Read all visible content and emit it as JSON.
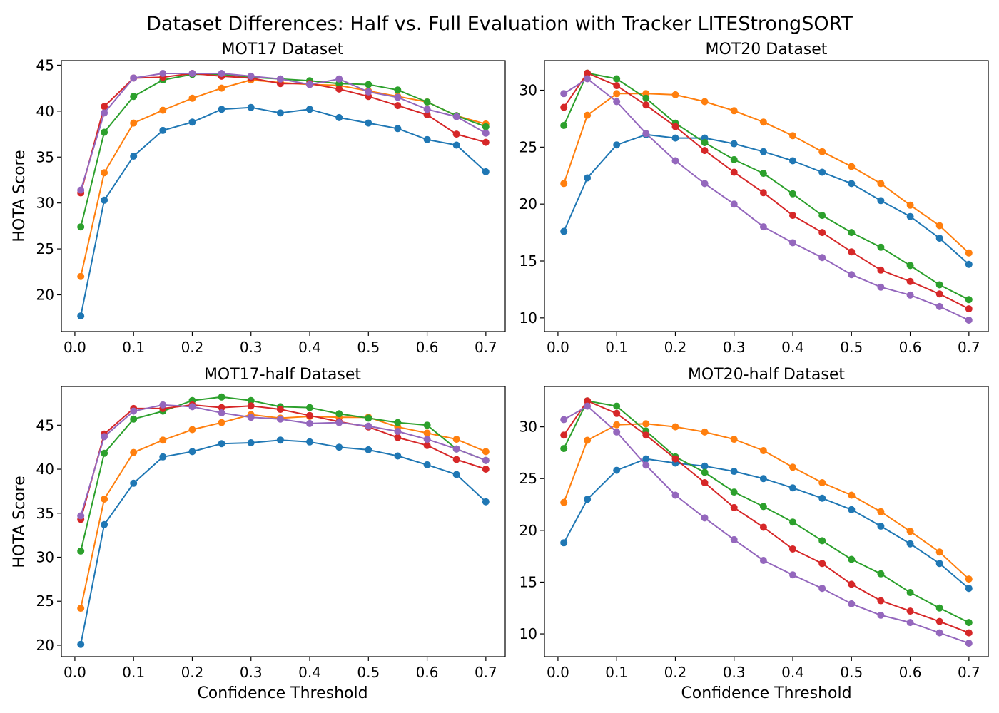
{
  "suptitle": "Dataset Differences: Half vs. Full Evaluation with Tracker LITEStrongSORT",
  "colors": {
    "blue": "#1f77b4",
    "orange": "#ff7f0e",
    "green": "#2ca02c",
    "red": "#d62728",
    "purple": "#9467bd"
  },
  "chart_data": [
    {
      "type": "line",
      "title": "MOT17 Dataset",
      "xlabel": "",
      "ylabel": "HOTA Score",
      "xlim": [
        -0.023,
        0.733
      ],
      "ylim": [
        16.0,
        45.5
      ],
      "xticks": [
        "0.0",
        "0.1",
        "0.2",
        "0.3",
        "0.4",
        "0.5",
        "0.6",
        "0.7"
      ],
      "yticks": [
        "20",
        "25",
        "30",
        "35",
        "40",
        "45"
      ],
      "x": [
        0.01,
        0.05,
        0.1,
        0.15,
        0.2,
        0.25,
        0.3,
        0.35,
        0.4,
        0.45,
        0.5,
        0.55,
        0.6,
        0.65,
        0.7
      ],
      "series": [
        {
          "color": "#1f77b4",
          "values": [
            17.7,
            30.3,
            35.1,
            37.9,
            38.8,
            40.2,
            40.4,
            39.8,
            40.2,
            39.3,
            38.7,
            38.1,
            36.9,
            36.3,
            33.4
          ]
        },
        {
          "color": "#ff7f0e",
          "values": [
            22.0,
            33.3,
            38.7,
            40.1,
            41.4,
            42.5,
            43.4,
            43.1,
            42.9,
            42.8,
            42.2,
            41.6,
            41.0,
            39.5,
            38.6
          ]
        },
        {
          "color": "#2ca02c",
          "values": [
            27.4,
            37.7,
            41.6,
            43.4,
            44.0,
            44.0,
            43.7,
            43.5,
            43.3,
            43.0,
            42.9,
            42.3,
            41.0,
            39.5,
            38.3
          ]
        },
        {
          "color": "#d62728",
          "values": [
            31.1,
            40.5,
            43.6,
            43.7,
            44.1,
            43.8,
            43.6,
            43.0,
            43.0,
            42.4,
            41.6,
            40.6,
            39.6,
            37.5,
            36.6
          ]
        },
        {
          "color": "#9467bd",
          "values": [
            31.4,
            39.8,
            43.6,
            44.1,
            44.1,
            44.1,
            43.8,
            43.5,
            42.9,
            43.5,
            42.1,
            41.5,
            40.2,
            39.4,
            37.6
          ]
        }
      ]
    },
    {
      "type": "line",
      "title": "MOT20 Dataset",
      "xlabel": "",
      "ylabel": "",
      "xlim": [
        -0.023,
        0.733
      ],
      "ylim": [
        8.8,
        32.6
      ],
      "xticks": [
        "0.0",
        "0.1",
        "0.2",
        "0.3",
        "0.4",
        "0.5",
        "0.6",
        "0.7"
      ],
      "yticks": [
        "10",
        "15",
        "20",
        "25",
        "30"
      ],
      "x": [
        0.01,
        0.05,
        0.1,
        0.15,
        0.2,
        0.25,
        0.3,
        0.35,
        0.4,
        0.45,
        0.5,
        0.55,
        0.6,
        0.65,
        0.7
      ],
      "series": [
        {
          "color": "#1f77b4",
          "values": [
            17.6,
            22.3,
            25.2,
            26.1,
            25.8,
            25.8,
            25.3,
            24.6,
            23.8,
            22.8,
            21.8,
            20.3,
            18.9,
            17.0,
            14.7
          ]
        },
        {
          "color": "#ff7f0e",
          "values": [
            21.8,
            27.8,
            29.7,
            29.7,
            29.6,
            29.0,
            28.2,
            27.2,
            26.0,
            24.6,
            23.3,
            21.8,
            19.9,
            18.1,
            15.7
          ]
        },
        {
          "color": "#2ca02c",
          "values": [
            26.9,
            31.5,
            31.0,
            29.3,
            27.1,
            25.4,
            23.9,
            22.7,
            20.9,
            19.0,
            17.5,
            16.2,
            14.6,
            12.9,
            11.6
          ]
        },
        {
          "color": "#d62728",
          "values": [
            28.5,
            31.5,
            30.4,
            28.7,
            26.8,
            24.7,
            22.8,
            21.0,
            19.0,
            17.5,
            15.8,
            14.2,
            13.2,
            12.1,
            10.8
          ]
        },
        {
          "color": "#9467bd",
          "values": [
            29.7,
            31.0,
            29.0,
            26.2,
            23.8,
            21.8,
            20.0,
            18.0,
            16.6,
            15.3,
            13.8,
            12.7,
            12.0,
            11.0,
            9.8
          ]
        }
      ]
    },
    {
      "type": "line",
      "title": "MOT17-half Dataset",
      "xlabel": "Confidence Threshold",
      "ylabel": "HOTA Score",
      "xlim": [
        -0.023,
        0.733
      ],
      "ylim": [
        18.7,
        49.4
      ],
      "xticks": [
        "0.0",
        "0.1",
        "0.2",
        "0.3",
        "0.4",
        "0.5",
        "0.6",
        "0.7"
      ],
      "yticks": [
        "20",
        "25",
        "30",
        "35",
        "40",
        "45"
      ],
      "x": [
        0.01,
        0.05,
        0.1,
        0.15,
        0.2,
        0.25,
        0.3,
        0.35,
        0.4,
        0.45,
        0.5,
        0.55,
        0.6,
        0.65,
        0.7
      ],
      "series": [
        {
          "color": "#1f77b4",
          "values": [
            20.1,
            33.7,
            38.4,
            41.4,
            42.0,
            42.9,
            43.0,
            43.3,
            43.1,
            42.5,
            42.2,
            41.5,
            40.5,
            39.4,
            36.3
          ]
        },
        {
          "color": "#ff7f0e",
          "values": [
            24.2,
            36.6,
            41.9,
            43.3,
            44.5,
            45.3,
            46.2,
            45.8,
            46.0,
            45.9,
            45.9,
            44.8,
            44.1,
            43.4,
            42.0
          ]
        },
        {
          "color": "#2ca02c",
          "values": [
            30.7,
            41.8,
            45.7,
            46.6,
            47.8,
            48.2,
            47.8,
            47.1,
            47.0,
            46.3,
            45.8,
            45.3,
            45.0,
            42.3,
            41.0
          ]
        },
        {
          "color": "#d62728",
          "values": [
            34.3,
            44.0,
            46.9,
            46.9,
            47.3,
            47.0,
            47.2,
            46.8,
            46.1,
            45.4,
            44.8,
            43.6,
            42.7,
            41.1,
            40.0
          ]
        },
        {
          "color": "#9467bd",
          "values": [
            34.7,
            43.7,
            46.6,
            47.3,
            47.1,
            46.4,
            45.9,
            45.7,
            45.2,
            45.3,
            44.9,
            44.3,
            43.4,
            42.3,
            41.0
          ]
        }
      ]
    },
    {
      "type": "line",
      "title": "MOT20-half Dataset",
      "xlabel": "Confidence Threshold",
      "ylabel": "",
      "xlim": [
        -0.023,
        0.733
      ],
      "ylim": [
        7.8,
        33.9
      ],
      "xticks": [
        "0.0",
        "0.1",
        "0.2",
        "0.3",
        "0.4",
        "0.5",
        "0.6",
        "0.7"
      ],
      "yticks": [
        "10",
        "15",
        "20",
        "25",
        "30"
      ],
      "x": [
        0.01,
        0.05,
        0.1,
        0.15,
        0.2,
        0.25,
        0.3,
        0.35,
        0.4,
        0.45,
        0.5,
        0.55,
        0.6,
        0.65,
        0.7
      ],
      "series": [
        {
          "color": "#1f77b4",
          "values": [
            18.8,
            23.0,
            25.8,
            26.9,
            26.5,
            26.2,
            25.7,
            25.0,
            24.1,
            23.1,
            22.0,
            20.4,
            18.7,
            16.8,
            14.4
          ]
        },
        {
          "color": "#ff7f0e",
          "values": [
            22.7,
            28.7,
            30.2,
            30.3,
            30.0,
            29.5,
            28.8,
            27.7,
            26.1,
            24.6,
            23.4,
            21.8,
            19.9,
            17.9,
            15.3
          ]
        },
        {
          "color": "#2ca02c",
          "values": [
            27.9,
            32.5,
            32.0,
            29.6,
            27.1,
            25.6,
            23.7,
            22.3,
            20.8,
            19.0,
            17.2,
            15.8,
            14.0,
            12.5,
            11.1
          ]
        },
        {
          "color": "#d62728",
          "values": [
            29.2,
            32.5,
            31.3,
            29.2,
            26.9,
            24.6,
            22.2,
            20.3,
            18.2,
            16.8,
            14.8,
            13.2,
            12.2,
            11.2,
            10.1
          ]
        },
        {
          "color": "#9467bd",
          "values": [
            30.7,
            32.0,
            29.5,
            26.3,
            23.4,
            21.2,
            19.1,
            17.1,
            15.7,
            14.4,
            12.9,
            11.8,
            11.1,
            10.1,
            9.1
          ]
        }
      ]
    }
  ]
}
